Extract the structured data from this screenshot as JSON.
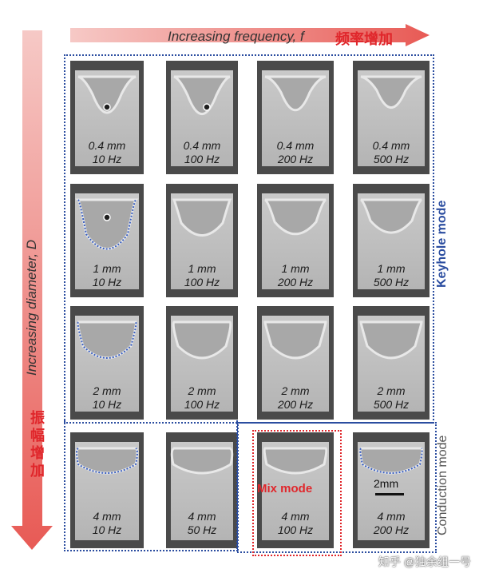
{
  "header": {
    "x_axis_label": "Increasing frequency, f",
    "x_axis_label_cn": "频率增加",
    "y_axis_label": "Increasing diameter, D",
    "y_axis_label_cn": "振幅增加"
  },
  "modes": {
    "keyhole": "Keyhole mode",
    "conduction": "Conduction mode",
    "mix": "Mix mode"
  },
  "scale_bar": "2mm",
  "watermark": "知乎 @独余组一号",
  "colors": {
    "accent_red": "#e0262b",
    "frame_blue": "#2b4da0"
  },
  "rows": [
    {
      "cells": [
        {
          "d": "0.4 mm",
          "f": "10 Hz"
        },
        {
          "d": "0.4 mm",
          "f": "100 Hz"
        },
        {
          "d": "0.4 mm",
          "f": "200 Hz"
        },
        {
          "d": "0.4 mm",
          "f": "500 Hz"
        }
      ]
    },
    {
      "cells": [
        {
          "d": "1 mm",
          "f": "10 Hz"
        },
        {
          "d": "1 mm",
          "f": "100 Hz"
        },
        {
          "d": "1 mm",
          "f": "200 Hz"
        },
        {
          "d": "1 mm",
          "f": "500 Hz"
        }
      ]
    },
    {
      "cells": [
        {
          "d": "2 mm",
          "f": "10 Hz"
        },
        {
          "d": "2 mm",
          "f": "100 Hz"
        },
        {
          "d": "2 mm",
          "f": "200 Hz"
        },
        {
          "d": "2 mm",
          "f": "500 Hz"
        }
      ]
    },
    {
      "cells": [
        {
          "d": "4 mm",
          "f": "10 Hz"
        },
        {
          "d": "4 mm",
          "f": "50 Hz"
        },
        {
          "d": "4 mm",
          "f": "100 Hz"
        },
        {
          "d": "4 mm",
          "f": "200 Hz"
        }
      ]
    }
  ]
}
